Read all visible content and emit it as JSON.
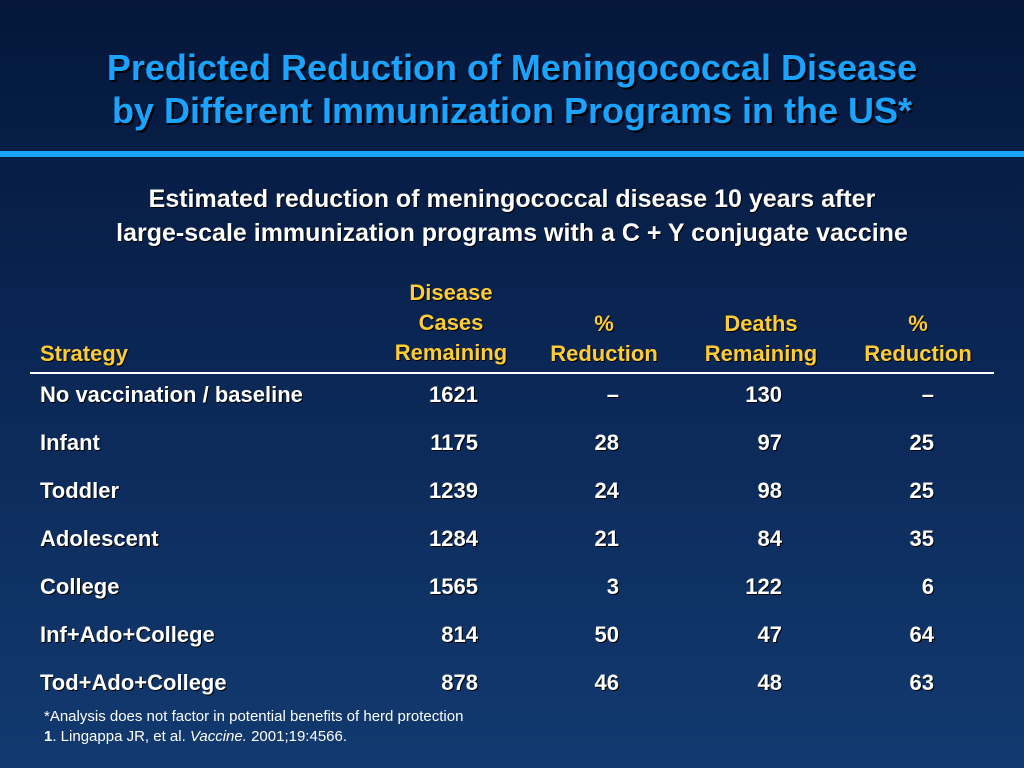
{
  "slide": {
    "title_line1": "Predicted Reduction of Meningococcal Disease",
    "title_line2": "by Different Immunization Programs in the US*",
    "subtitle_line1": "Estimated reduction of meningococcal disease 10 years after",
    "subtitle_line2": "large-scale immunization programs with a C + Y conjugate vaccine"
  },
  "table": {
    "headers": {
      "strategy": "Strategy",
      "cases": [
        "Disease",
        "Cases",
        "Remaining"
      ],
      "pct1": [
        "%",
        "Reduction"
      ],
      "deaths": [
        "Deaths",
        "Remaining"
      ],
      "pct2": [
        "%",
        "Reduction"
      ]
    },
    "rows": [
      {
        "strategy": "No vaccination / baseline",
        "cases": "1621",
        "pct1": "–",
        "deaths": "130",
        "pct2": "–"
      },
      {
        "strategy": "Infant",
        "cases": "1175",
        "pct1": "28",
        "deaths": "97",
        "pct2": "25"
      },
      {
        "strategy": "Toddler",
        "cases": "1239",
        "pct1": "24",
        "deaths": "98",
        "pct2": "25"
      },
      {
        "strategy": "Adolescent",
        "cases": "1284",
        "pct1": "21",
        "deaths": "84",
        "pct2": "35"
      },
      {
        "strategy": "College",
        "cases": "1565",
        "pct1": "3",
        "deaths": "122",
        "pct2": "6"
      },
      {
        "strategy": "Inf+Ado+College",
        "cases": "814",
        "pct1": "50",
        "deaths": "47",
        "pct2": "64"
      },
      {
        "strategy": "Tod+Ado+College",
        "cases": "878",
        "pct1": "46",
        "deaths": "48",
        "pct2": "63"
      }
    ]
  },
  "footnotes": {
    "note": "*Analysis does not factor in potential benefits of herd protection",
    "ref_number": "1",
    "ref_authors": ". Lingappa JR, et al. ",
    "ref_journal": "Vaccine.",
    "ref_citation": " 2001;19:4566."
  },
  "colors": {
    "title": "#1aa3ff",
    "header": "#ffcc33",
    "background_top": "#04173a",
    "background_bottom": "#123a70"
  }
}
